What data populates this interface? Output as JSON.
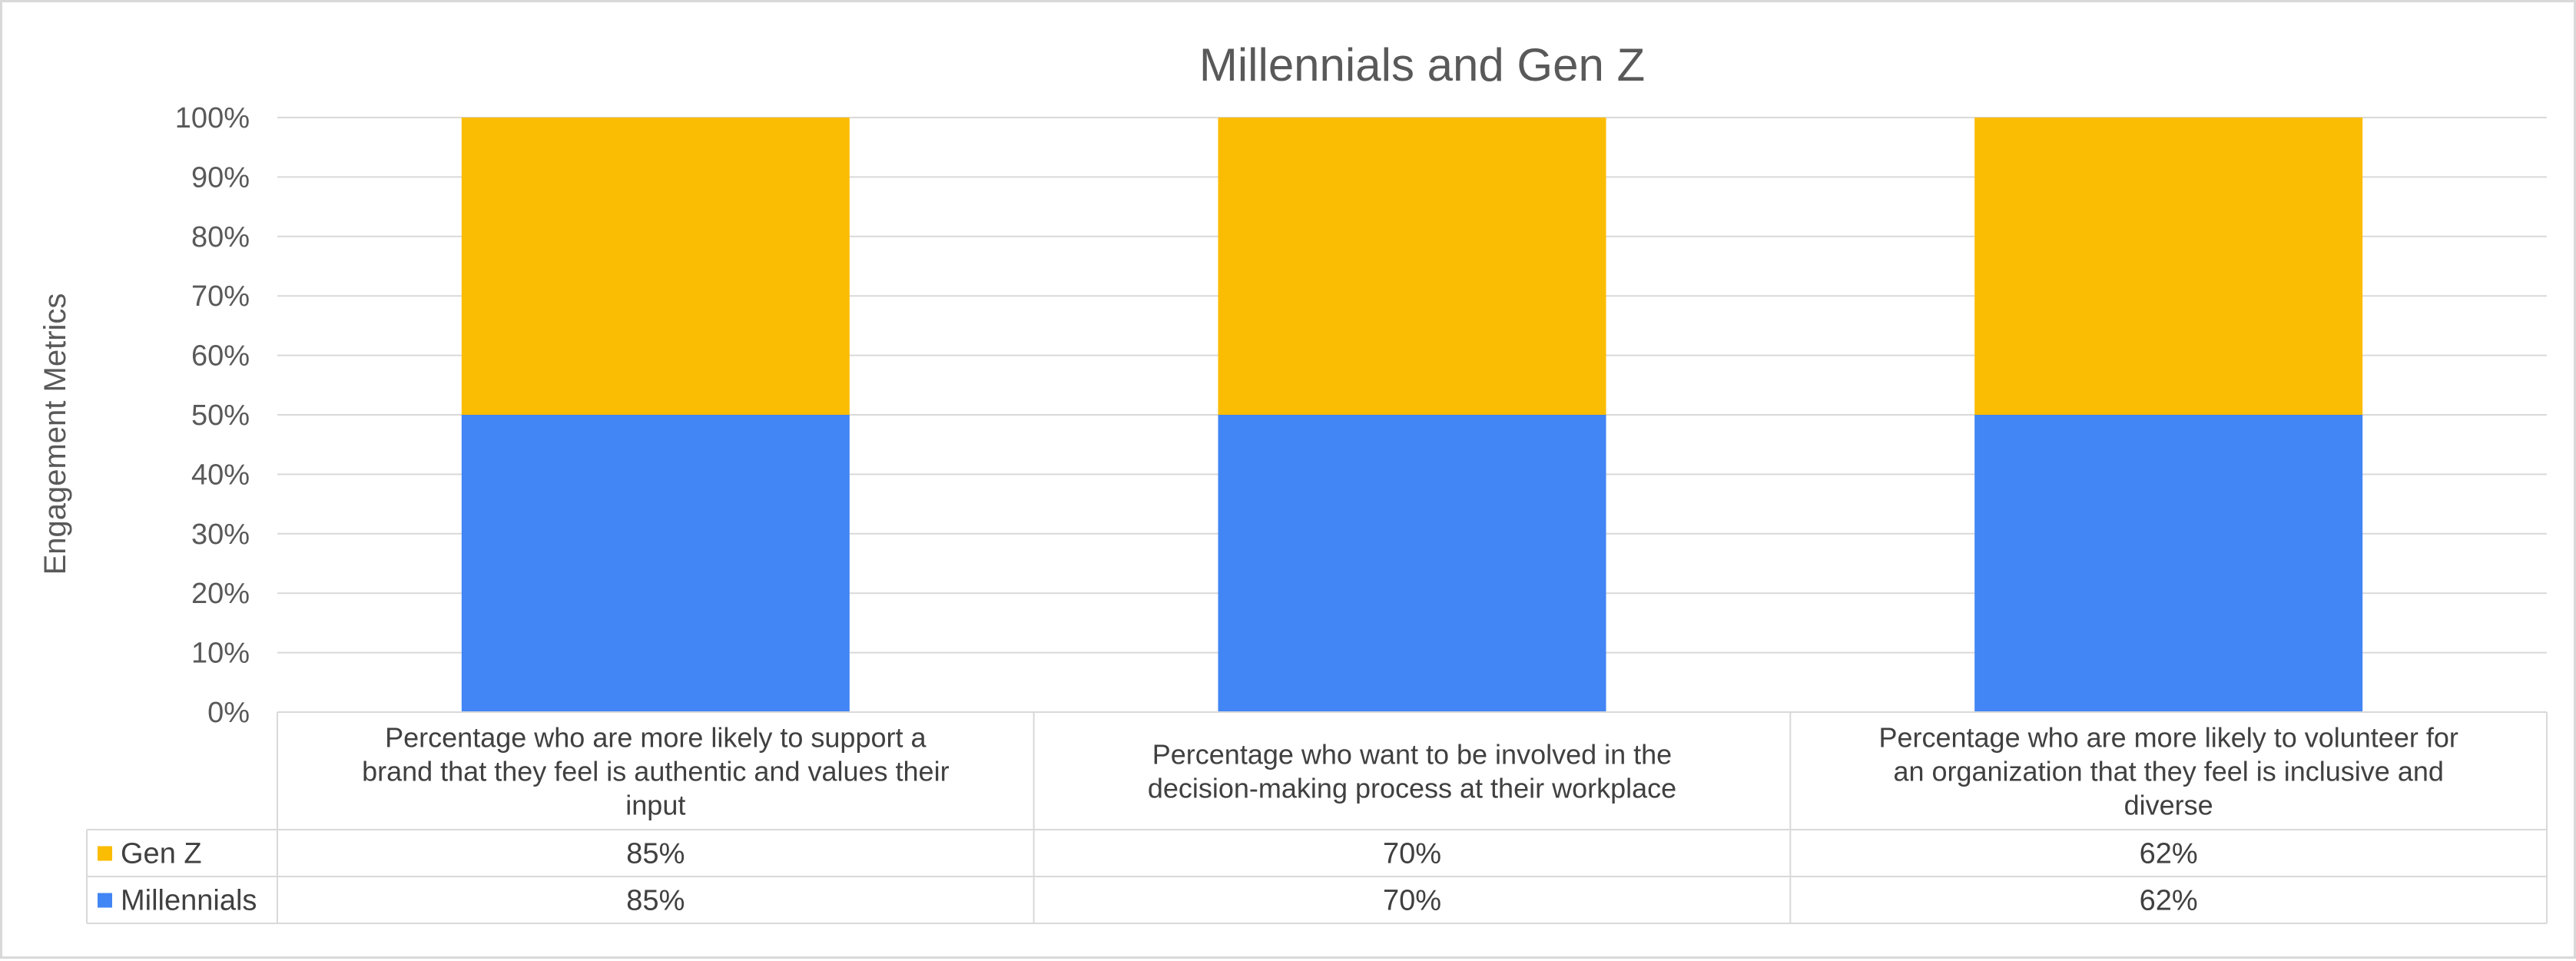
{
  "chart_data": {
    "type": "bar",
    "stacked": "percent",
    "title": "Millennials and Gen Z",
    "ylabel": "Engagement Metrics",
    "ylim": [
      0,
      100
    ],
    "yticks": [
      "0%",
      "10%",
      "20%",
      "30%",
      "40%",
      "50%",
      "60%",
      "70%",
      "80%",
      "90%",
      "100%"
    ],
    "grid": true,
    "legend": "data-table",
    "categories": [
      [
        "Percentage who are more likely to support a",
        "brand that they feel is authentic and values their",
        "input"
      ],
      [
        "Percentage who want to be involved in the",
        "decision-making process at their workplace"
      ],
      [
        "Percentage who are more likely to volunteer for",
        "an organization that they feel is inclusive and",
        "diverse"
      ]
    ],
    "series": [
      {
        "name": "Gen Z",
        "color": "#FBBC04",
        "values": [
          85,
          70,
          62
        ],
        "labels": [
          "85%",
          "70%",
          "62%"
        ]
      },
      {
        "name": "Millennials",
        "color": "#4285F4",
        "values": [
          85,
          70,
          62
        ],
        "labels": [
          "85%",
          "70%",
          "62%"
        ]
      }
    ]
  }
}
